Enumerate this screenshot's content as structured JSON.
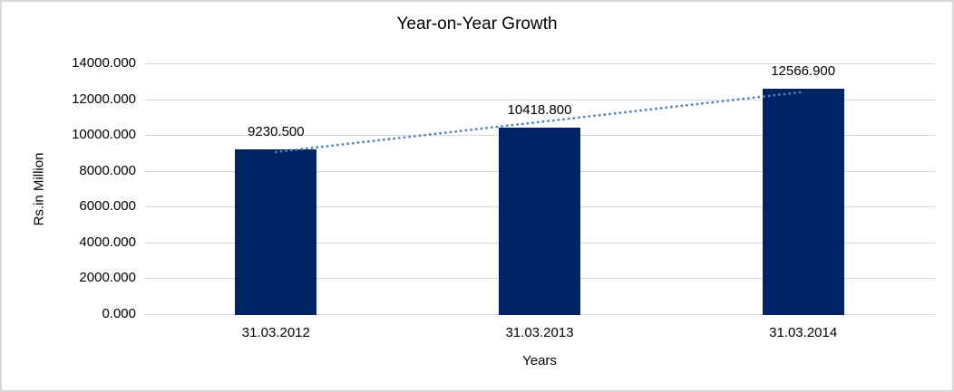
{
  "chart_data": {
    "type": "bar",
    "title": "Year-on-Year Growth",
    "xlabel": "Years",
    "ylabel": "Rs.in Million",
    "categories": [
      "31.03.2012",
      "31.03.2013",
      "31.03.2014"
    ],
    "values": [
      9230.5,
      10418.8,
      12566.9
    ],
    "data_labels": [
      "9230.500",
      "10418.800",
      "12566.900"
    ],
    "ylim": [
      0,
      14000
    ],
    "ytick_step": 2000,
    "ytick_labels": [
      "14000.000",
      "12000.000",
      "10000.000",
      "8000.000",
      "6000.000",
      "4000.000",
      "2000.000",
      "0.000"
    ],
    "grid": true,
    "legend_position": "none",
    "bar_color": "#002366",
    "gridline_color": "#d9d9d9",
    "text_color": "#000000",
    "trendline": {
      "type": "linear",
      "style": "dotted",
      "color": "#4f81bd"
    }
  }
}
